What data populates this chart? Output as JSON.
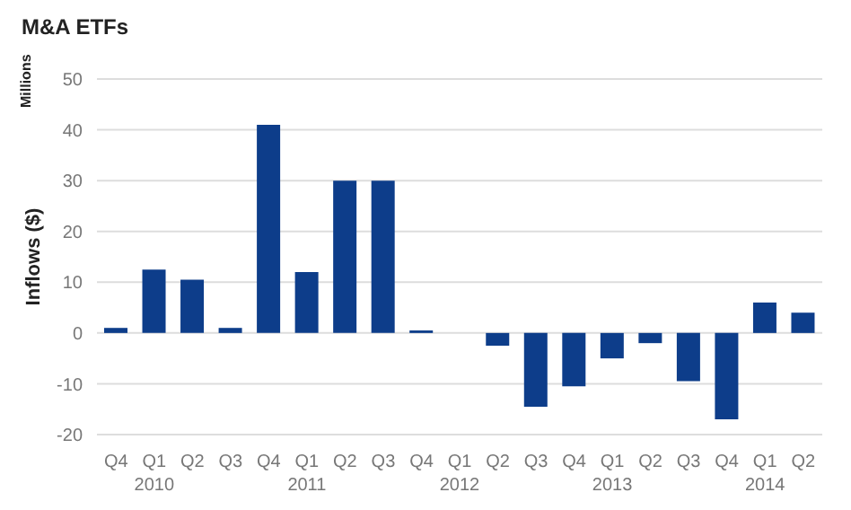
{
  "chart_data": {
    "type": "bar",
    "title": "M&A ETFs",
    "ylabel": "Inflows ($)",
    "annotations": [
      "Millions"
    ],
    "categories": [
      "Q4",
      "Q1 2010",
      "Q2",
      "Q3",
      "Q4",
      "Q1 2011",
      "Q2",
      "Q3",
      "Q4",
      "Q1 2012",
      "Q2",
      "Q3",
      "Q4",
      "Q1 2013",
      "Q2",
      "Q3",
      "Q4",
      "Q1 2014",
      "Q2"
    ],
    "values": [
      1,
      12.5,
      10.5,
      1,
      41,
      12,
      30,
      30,
      0.5,
      0,
      -2.5,
      -14.5,
      -10.5,
      -5,
      -2,
      -9.5,
      -17,
      6,
      4
    ],
    "color": "#0d3d8a",
    "ylim": [
      -20,
      50
    ],
    "yticks": [
      -20,
      -10,
      0,
      10,
      20,
      30,
      40,
      50
    ],
    "grid": "y",
    "legend": false
  }
}
